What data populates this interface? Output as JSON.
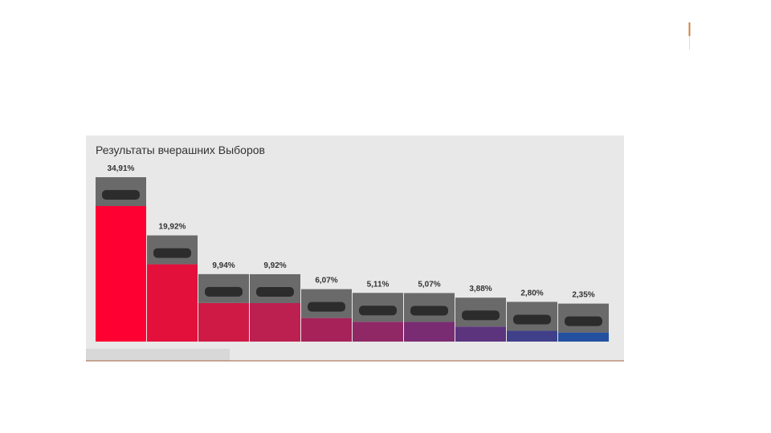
{
  "chart_data": {
    "type": "bar",
    "title": "Результаты вчерашних Выборов",
    "values": [
      34.91,
      19.92,
      9.94,
      9.92,
      6.07,
      5.11,
      5.07,
      3.88,
      2.8,
      2.35
    ],
    "value_labels": [
      "34,91%",
      "19,92%",
      "9,94%",
      "9,92%",
      "6,07%",
      "5,11%",
      "5,07%",
      "3,88%",
      "2,80%",
      "2,35%"
    ],
    "colors": [
      "#ff0033",
      "#e4103c",
      "#d01a46",
      "#bc2050",
      "#a62259",
      "#902866",
      "#7a2c72",
      "#5c347e",
      "#40408a",
      "#2450a0"
    ]
  }
}
